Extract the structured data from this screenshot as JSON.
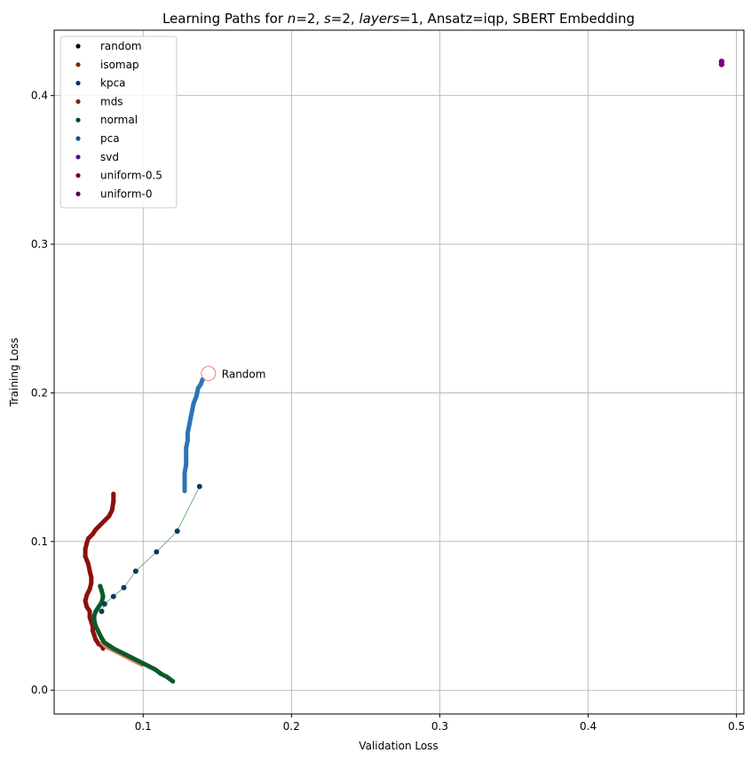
{
  "chart_data": {
    "type": "scatter",
    "title": "Learning Paths for n=2, s=2, layers=1, Ansatz=iqp, SBERT Embedding",
    "title_parts": {
      "prefix": "Learning Paths for ",
      "n_var": "n",
      "n_eq": "=2, ",
      "s_var": "s",
      "s_eq": "=2, ",
      "layers_var": "layers",
      "layers_eq": "=1, Ansatz=iqp, SBERT Embedding"
    },
    "xlabel": "Validation Loss",
    "ylabel": "Training Loss",
    "xlim": [
      0.04,
      0.505
    ],
    "ylim": [
      -0.016,
      0.444
    ],
    "xticks": [
      0.1,
      0.2,
      0.3,
      0.4,
      0.5
    ],
    "xtick_labels": [
      "0.1",
      "0.2",
      "0.3",
      "0.4",
      "0.5"
    ],
    "yticks": [
      0.0,
      0.1,
      0.2,
      0.3,
      0.4
    ],
    "ytick_labels": [
      "0.0",
      "0.1",
      "0.2",
      "0.3",
      "0.4"
    ],
    "grid": true,
    "legend_position": "top-left",
    "legend": [
      {
        "name": "random",
        "color": "#000000"
      },
      {
        "name": "isomap",
        "color": "#7f2704"
      },
      {
        "name": "kpca",
        "color": "#08306b"
      },
      {
        "name": "mds",
        "color": "#7f2704"
      },
      {
        "name": "normal",
        "color": "#00441b"
      },
      {
        "name": "pca",
        "color": "#08519c"
      },
      {
        "name": "svd",
        "color": "#4a1486"
      },
      {
        "name": "uniform-0.5",
        "color": "#800000"
      },
      {
        "name": "uniform-0",
        "color": "#4d004b"
      }
    ],
    "annotation": {
      "text": "Random",
      "x": 0.144,
      "y": 0.213,
      "marker_color": "#f08080"
    },
    "series": [
      {
        "name": "uniform-0.5",
        "color": "#8b1010",
        "width": 5,
        "x": [
          0.08,
          0.08,
          0.079,
          0.077,
          0.074,
          0.071,
          0.068,
          0.066,
          0.063,
          0.062,
          0.061,
          0.061,
          0.063,
          0.064,
          0.065,
          0.065,
          0.064,
          0.062,
          0.061,
          0.062,
          0.064,
          0.064,
          0.065,
          0.066,
          0.066,
          0.067,
          0.068,
          0.07,
          0.072,
          0.073
        ],
        "y": [
          0.132,
          0.127,
          0.121,
          0.117,
          0.114,
          0.111,
          0.108,
          0.105,
          0.102,
          0.099,
          0.095,
          0.09,
          0.085,
          0.08,
          0.076,
          0.072,
          0.068,
          0.064,
          0.06,
          0.056,
          0.053,
          0.049,
          0.046,
          0.043,
          0.04,
          0.037,
          0.034,
          0.031,
          0.03,
          0.028
        ]
      },
      {
        "name": "mds",
        "color": "#e08060",
        "width": 4,
        "x": [
          0.072,
          0.075,
          0.079,
          0.083,
          0.087,
          0.091,
          0.095,
          0.099
        ],
        "y": [
          0.032,
          0.029,
          0.027,
          0.025,
          0.023,
          0.021,
          0.019,
          0.017
        ]
      },
      {
        "name": "normal",
        "color": "#0b5a2a",
        "width": 5,
        "x": [
          0.071,
          0.072,
          0.073,
          0.072,
          0.07,
          0.068,
          0.067,
          0.067,
          0.068,
          0.07,
          0.072,
          0.074,
          0.077,
          0.08,
          0.084,
          0.088,
          0.092,
          0.096,
          0.1,
          0.104,
          0.108,
          0.112,
          0.116,
          0.12
        ],
        "y": [
          0.07,
          0.067,
          0.063,
          0.059,
          0.056,
          0.053,
          0.05,
          0.047,
          0.043,
          0.039,
          0.035,
          0.032,
          0.03,
          0.028,
          0.026,
          0.024,
          0.022,
          0.02,
          0.018,
          0.016,
          0.014,
          0.011,
          0.009,
          0.006
        ]
      },
      {
        "name": "pca",
        "color": "#2b75b5",
        "width": 5,
        "x": [
          0.14,
          0.139,
          0.137,
          0.136,
          0.134,
          0.133,
          0.132,
          0.131,
          0.13,
          0.13,
          0.129,
          0.129,
          0.129,
          0.128,
          0.128,
          0.128
        ],
        "y": [
          0.209,
          0.206,
          0.203,
          0.198,
          0.193,
          0.188,
          0.183,
          0.178,
          0.173,
          0.168,
          0.163,
          0.157,
          0.152,
          0.146,
          0.14,
          0.134
        ]
      },
      {
        "name": "kpca",
        "color": "#0d3a5c",
        "width": 0.8,
        "line_color": "#4aa84a",
        "markers": true,
        "x": [
          0.138,
          0.123,
          0.109,
          0.095,
          0.087,
          0.08,
          0.074,
          0.072
        ],
        "y": [
          0.137,
          0.107,
          0.093,
          0.08,
          0.069,
          0.063,
          0.058,
          0.053
        ]
      },
      {
        "name": "uniform-0",
        "color": "#800080",
        "width": 0,
        "x": [
          0.49,
          0.49
        ],
        "y": [
          0.421,
          0.423
        ]
      }
    ]
  }
}
